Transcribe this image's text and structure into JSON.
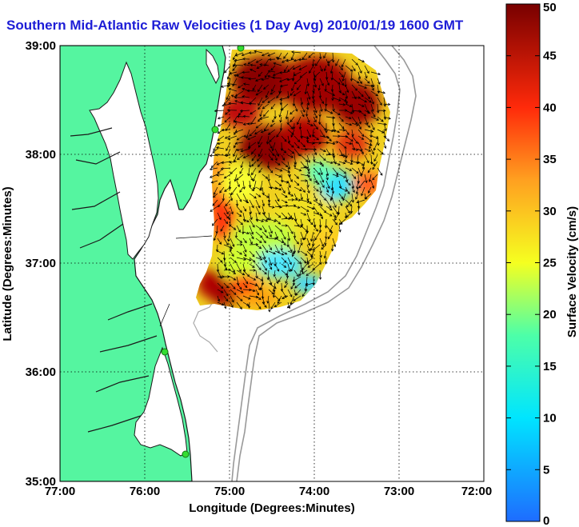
{
  "title": "Southern Mid-Atlantic Raw Velocities (1 Day Avg) 2010/01/19 1600 GMT",
  "chart_data": {
    "type": "heatmap",
    "xlabel": "Longitude (Degrees:Minutes)",
    "ylabel": "Latitude (Degrees:Minutes)",
    "x_ticks": [
      "77:00",
      "76:00",
      "75:00",
      "74:00",
      "73:00",
      "72:00"
    ],
    "y_ticks": [
      "39:00",
      "38:00",
      "37:00",
      "36:00",
      "35:00"
    ],
    "xlim": [
      -77,
      -72
    ],
    "ylim": [
      35,
      39
    ],
    "grid": true,
    "colorbar": {
      "label": "Surface Velocity (cm/s)",
      "range": [
        0,
        50
      ],
      "ticks": [
        "50",
        "45",
        "40",
        "35",
        "30",
        "25",
        "20",
        "15",
        "10",
        "5",
        "0"
      ]
    },
    "colors": {
      "land": "#55f5a0",
      "coast": "#1a1a1a",
      "title": "#1d1dd6",
      "station": "#33dd33",
      "bathymetry": "#999999"
    }
  }
}
